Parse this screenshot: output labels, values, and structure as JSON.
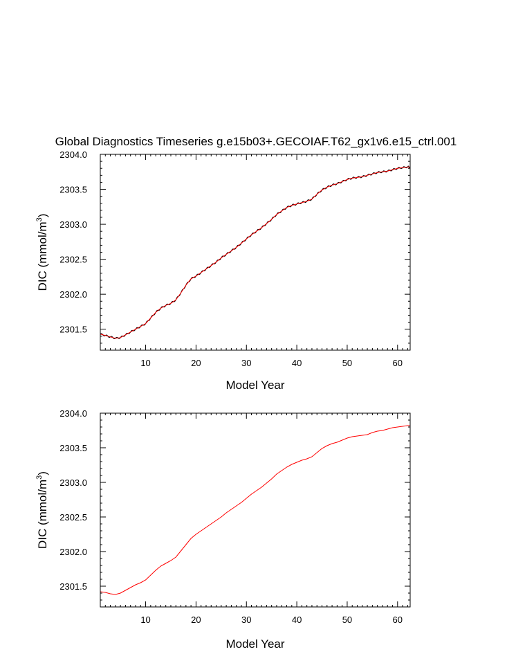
{
  "title": "Global Diagnostics Timeseries g.e15b03+.GECOIAF.T62_gx1v6.e15_ctrl.001",
  "colors": {
    "axis": "#000000",
    "line": "#ff0000",
    "raw_line": "#000000"
  },
  "chart_data": [
    {
      "type": "line",
      "xlabel": "Model Year",
      "ylabel_main": "DIC (mmol/m",
      "ylabel_sup": "3",
      "ylabel_end": ")",
      "xlim": [
        1,
        62.5
      ],
      "ylim": [
        2301.2,
        2304.0
      ],
      "xticks": [
        10,
        20,
        30,
        40,
        50,
        60
      ],
      "yticks": [
        2301.5,
        2302.0,
        2302.5,
        2303.0,
        2303.5,
        2304.0
      ],
      "ytick_labels": [
        "2301.5",
        "2302.0",
        "2302.5",
        "2303.0",
        "2303.5",
        "2304.0"
      ],
      "series": [
        {
          "style": "annual-cycle",
          "x": [
            1,
            2,
            3,
            4,
            5,
            6,
            7,
            8,
            9,
            10,
            11,
            12,
            13,
            14,
            15,
            16,
            17,
            18,
            19,
            20,
            21,
            22,
            23,
            24,
            25,
            26,
            27,
            28,
            29,
            30,
            31,
            32,
            33,
            34,
            35,
            36,
            37,
            38,
            39,
            40,
            41,
            42,
            43,
            44,
            45,
            46,
            47,
            48,
            49,
            50,
            51,
            52,
            53,
            54,
            55,
            56,
            57,
            58,
            59,
            60,
            61,
            62,
            62.5
          ],
          "y": [
            2301.43,
            2301.41,
            2301.39,
            2301.37,
            2301.38,
            2301.42,
            2301.46,
            2301.5,
            2301.54,
            2301.58,
            2301.66,
            2301.74,
            2301.8,
            2301.84,
            2301.87,
            2301.92,
            2302.02,
            2302.13,
            2302.22,
            2302.26,
            2302.31,
            2302.36,
            2302.41,
            2302.46,
            2302.52,
            2302.57,
            2302.62,
            2302.67,
            2302.73,
            2302.79,
            2302.85,
            2302.9,
            2302.95,
            2303.01,
            2303.07,
            2303.14,
            2303.19,
            2303.24,
            2303.27,
            2303.29,
            2303.31,
            2303.33,
            2303.36,
            2303.43,
            2303.49,
            2303.53,
            2303.56,
            2303.58,
            2303.61,
            2303.64,
            2303.66,
            2303.67,
            2303.68,
            2303.7,
            2303.72,
            2303.74,
            2303.75,
            2303.76,
            2303.78,
            2303.8,
            2303.81,
            2303.82,
            2303.82
          ]
        }
      ]
    },
    {
      "type": "line",
      "xlabel": "Model Year",
      "ylabel_main": "DIC (mmol/m",
      "ylabel_sup": "3",
      "ylabel_end": ")",
      "xlim": [
        1,
        62.5
      ],
      "ylim": [
        2301.2,
        2304.0
      ],
      "xticks": [
        10,
        20,
        30,
        40,
        50,
        60
      ],
      "yticks": [
        2301.5,
        2302.0,
        2302.5,
        2303.0,
        2303.5,
        2304.0
      ],
      "ytick_labels": [
        "2301.5",
        "2302.0",
        "2302.5",
        "2303.0",
        "2303.5",
        "2304.0"
      ],
      "series": [
        {
          "style": "smooth",
          "x": [
            1,
            2,
            3,
            4,
            5,
            6,
            7,
            8,
            9,
            10,
            11,
            12,
            13,
            14,
            15,
            16,
            17,
            18,
            19,
            20,
            21,
            22,
            23,
            24,
            25,
            26,
            27,
            28,
            29,
            30,
            31,
            32,
            33,
            34,
            35,
            36,
            37,
            38,
            39,
            40,
            41,
            42,
            43,
            44,
            45,
            46,
            47,
            48,
            49,
            50,
            51,
            52,
            53,
            54,
            55,
            56,
            57,
            58,
            59,
            60,
            61,
            62,
            62.5
          ],
          "y": [
            2301.42,
            2301.41,
            2301.39,
            2301.38,
            2301.4,
            2301.44,
            2301.48,
            2301.52,
            2301.55,
            2301.59,
            2301.66,
            2301.73,
            2301.79,
            2301.83,
            2301.87,
            2301.92,
            2302.01,
            2302.1,
            2302.19,
            2302.25,
            2302.3,
            2302.35,
            2302.4,
            2302.45,
            2302.5,
            2302.56,
            2302.61,
            2302.66,
            2302.71,
            2302.77,
            2302.83,
            2302.88,
            2302.93,
            2302.99,
            2303.05,
            2303.12,
            2303.17,
            2303.22,
            2303.26,
            2303.29,
            2303.32,
            2303.34,
            2303.37,
            2303.43,
            2303.49,
            2303.53,
            2303.56,
            2303.58,
            2303.61,
            2303.64,
            2303.66,
            2303.67,
            2303.68,
            2303.69,
            2303.72,
            2303.74,
            2303.75,
            2303.77,
            2303.79,
            2303.8,
            2303.81,
            2303.82,
            2303.82
          ]
        }
      ]
    }
  ]
}
